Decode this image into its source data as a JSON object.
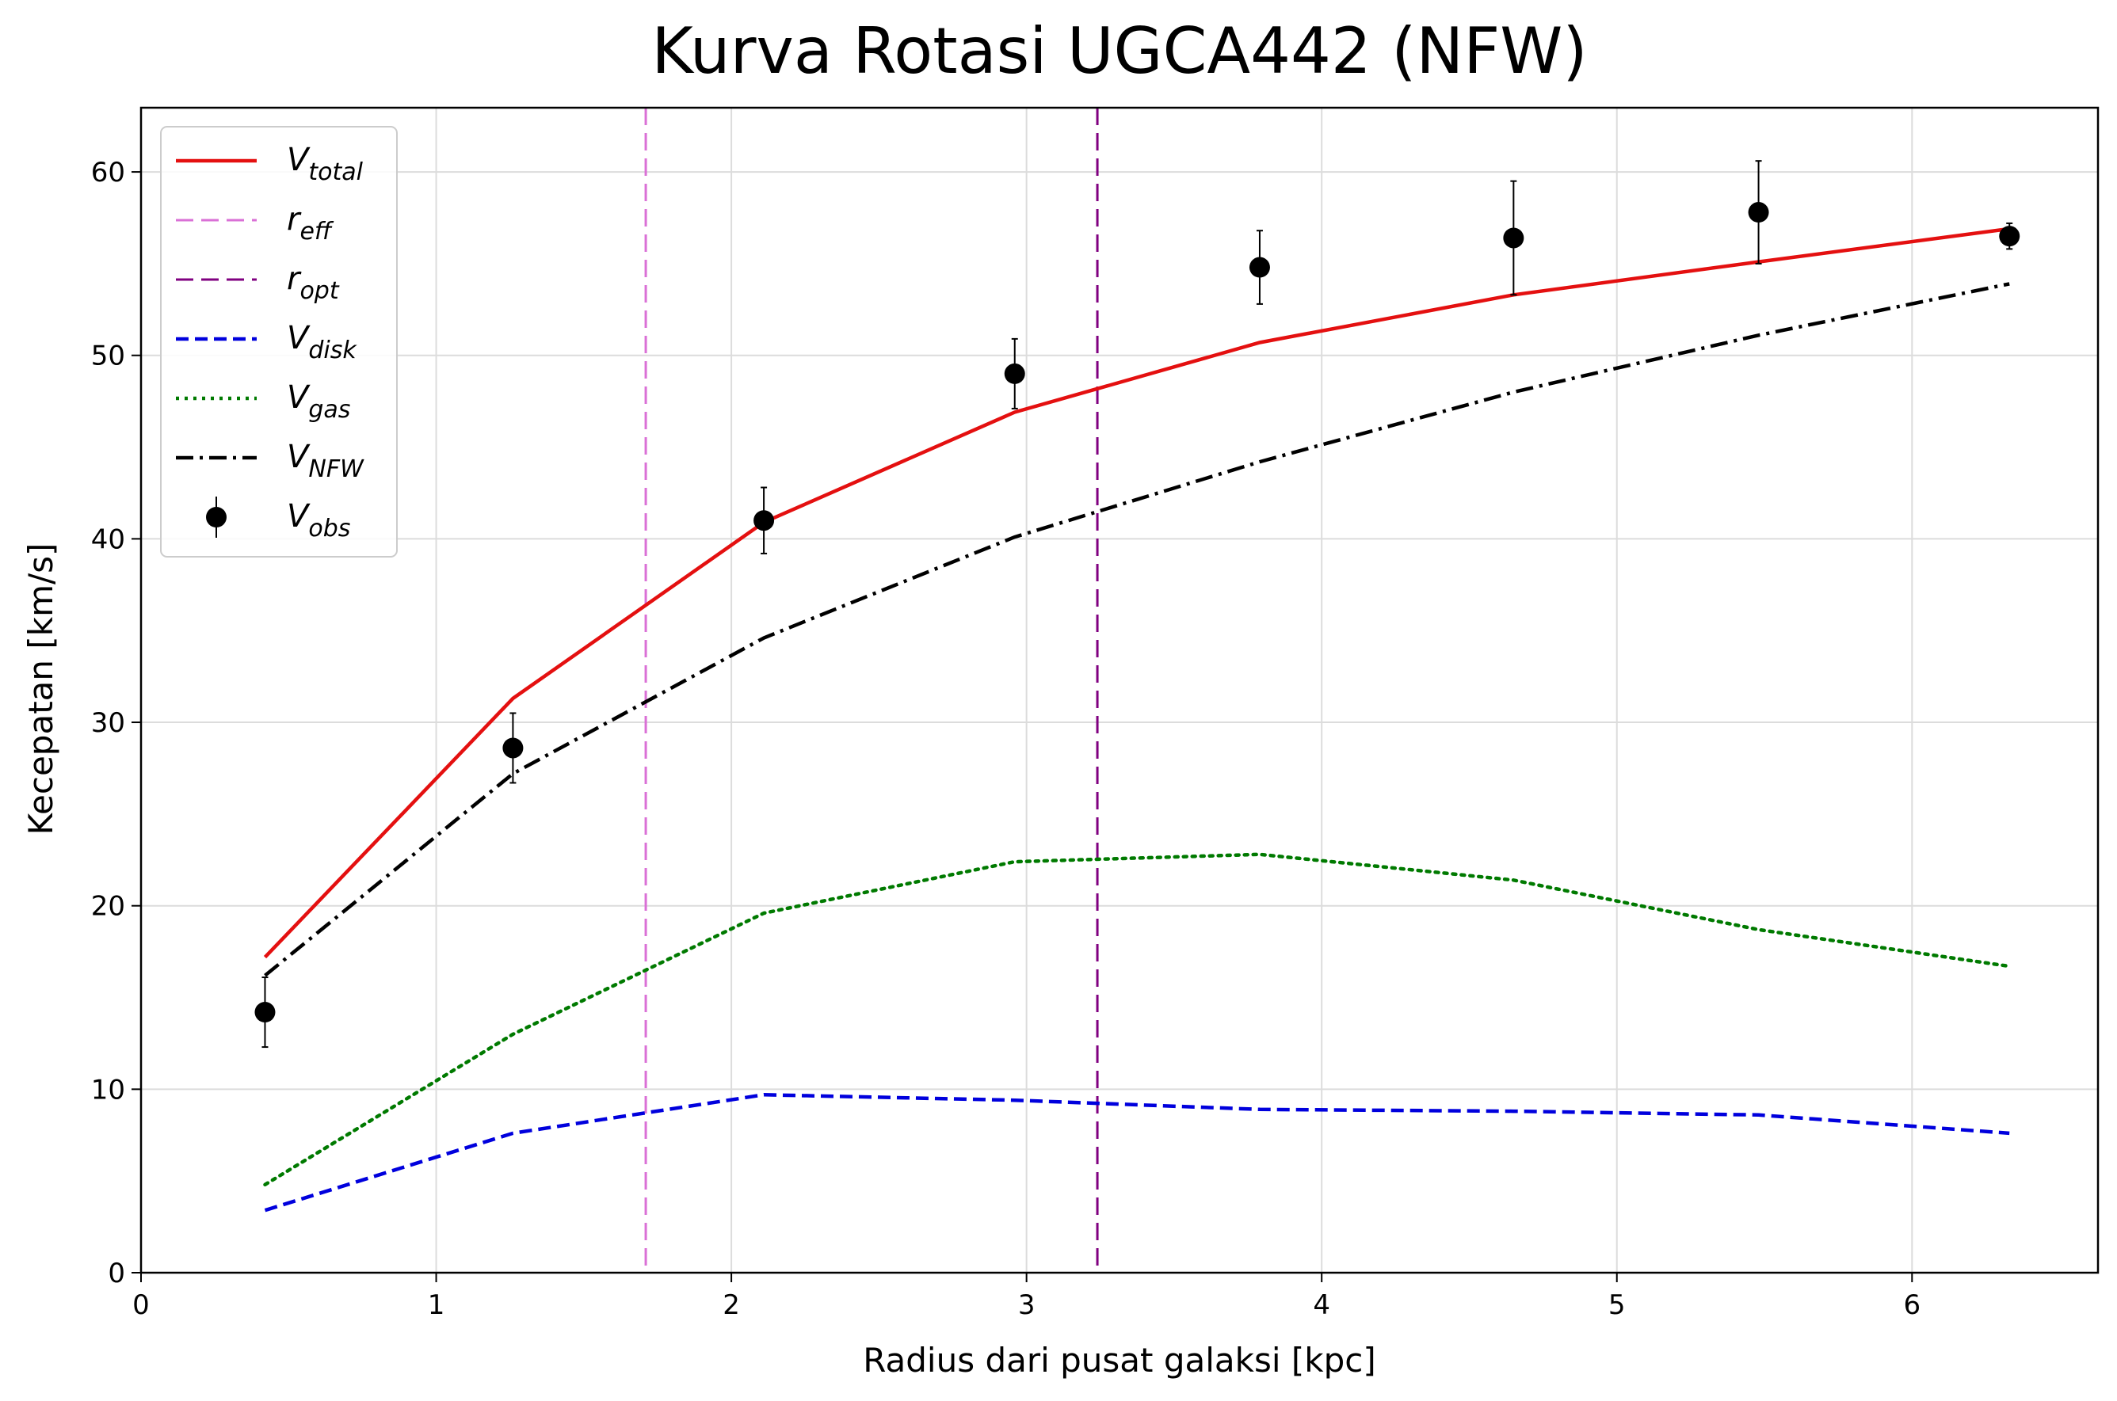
{
  "chart_data": {
    "type": "line",
    "title": "Kurva Rotasi UGCA442 (NFW)",
    "xlabel": "Radius dari pusat galaksi [kpc]",
    "ylabel": "Kecepatan [km/s]",
    "xlim": [
      0,
      6.63
    ],
    "ylim": [
      0,
      63.5
    ],
    "xticks": [
      0,
      1,
      2,
      3,
      4,
      5,
      6
    ],
    "yticks": [
      0,
      10,
      20,
      30,
      40,
      50,
      60
    ],
    "grid": true,
    "legend_position": "upper-left",
    "x": [
      0.42,
      1.26,
      2.11,
      2.96,
      3.79,
      4.65,
      5.48,
      6.33
    ],
    "series": [
      {
        "name": "V",
        "sub": "total",
        "style": "solid",
        "color": "#e41010",
        "values": [
          17.2,
          31.3,
          40.9,
          46.9,
          50.7,
          53.3,
          55.1,
          56.9
        ]
      },
      {
        "name": "V",
        "sub": "disk",
        "style": "dashed",
        "color": "#0000dd",
        "values": [
          3.4,
          7.6,
          9.7,
          9.4,
          8.9,
          8.8,
          8.6,
          7.6
        ]
      },
      {
        "name": "V",
        "sub": "gas",
        "style": "dotted",
        "color": "#007a00",
        "values": [
          4.8,
          13.0,
          19.6,
          22.4,
          22.8,
          21.4,
          18.7,
          16.7
        ]
      },
      {
        "name": "V",
        "sub": "NFW",
        "style": "dashdot",
        "color": "#000000",
        "values": [
          16.2,
          27.2,
          34.6,
          40.1,
          44.2,
          48.0,
          51.1,
          53.9
        ]
      }
    ],
    "observed": {
      "name": "V",
      "sub": "obs",
      "color": "#000000",
      "values": [
        14.2,
        28.6,
        41.0,
        49.0,
        54.8,
        56.4,
        57.8,
        56.5
      ],
      "errors": [
        1.9,
        1.9,
        1.8,
        1.9,
        2.0,
        3.1,
        2.8,
        0.7
      ]
    },
    "vlines": [
      {
        "name": "r",
        "sub": "eff",
        "x": 1.71,
        "color": "#da70d6",
        "style": "longdash"
      },
      {
        "name": "r",
        "sub": "opt",
        "x": 3.24,
        "color": "#800080",
        "style": "longdash"
      }
    ]
  }
}
